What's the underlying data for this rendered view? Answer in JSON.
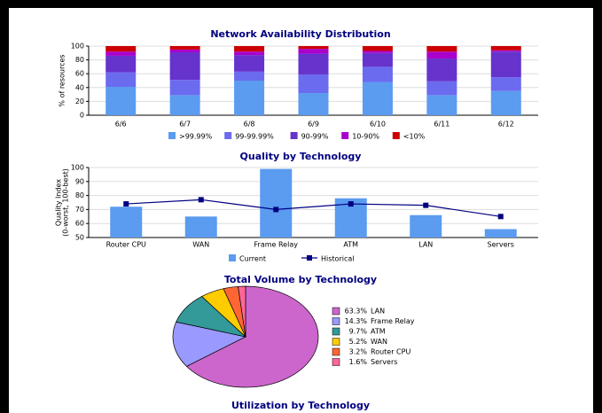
{
  "chart_data": [
    {
      "type": "stacked-bar",
      "title": "Network Availability Distribution",
      "ylabel": "% of resources",
      "categories": [
        "6/6",
        "6/7",
        "6/8",
        "6/9",
        "6/10",
        "6/11",
        "6/12"
      ],
      "series": [
        {
          "name": ">99.99%",
          "color": "#5b9bf0",
          "values": [
            41,
            29,
            50,
            32,
            48,
            29,
            35
          ]
        },
        {
          "name": "99-99.99%",
          "color": "#6b6bf0",
          "values": [
            21,
            22,
            13,
            27,
            22,
            20,
            20
          ]
        },
        {
          "name": "90-99%",
          "color": "#6633cc",
          "values": [
            24,
            40,
            24,
            30,
            20,
            33,
            37
          ]
        },
        {
          "name": "10-90%",
          "color": "#aa00cc",
          "values": [
            6,
            4,
            5,
            7,
            3,
            10,
            2
          ]
        },
        {
          "name": "<10%",
          "color": "#cc0000",
          "values": [
            8,
            5,
            8,
            4,
            7,
            8,
            6
          ]
        }
      ],
      "ylim": [
        0,
        100
      ],
      "yticks": [
        0,
        20,
        40,
        60,
        80,
        100
      ],
      "grid": true
    },
    {
      "type": "bar-line",
      "title": "Quality by Technology",
      "ylabel": [
        "Quality Index",
        "(0-worst, 100-best)"
      ],
      "categories": [
        "Router CPU",
        "WAN",
        "Frame Relay",
        "ATM",
        "LAN",
        "Servers"
      ],
      "series": [
        {
          "name": "Current",
          "color": "#5b9bf0",
          "values": [
            72,
            65,
            99,
            78,
            66,
            56
          ]
        },
        {
          "name": "Historical",
          "color": "#000080",
          "values": [
            74,
            77,
            70,
            74,
            73,
            65
          ]
        }
      ],
      "ylim": [
        50,
        100
      ],
      "yticks": [
        50,
        60,
        70,
        80,
        90,
        100
      ],
      "grid": true
    },
    {
      "type": "pie",
      "title": "Total Volume by Technology",
      "categories": [
        "LAN",
        "Frame Relay",
        "ATM",
        "WAN",
        "Router CPU",
        "Servers"
      ],
      "values": [
        63.3,
        14.3,
        9.7,
        5.2,
        3.2,
        1.6
      ],
      "value_labels": [
        "63.3%",
        "14.3%",
        "9.7%",
        "5.2%",
        "3.2%",
        "1.6%"
      ],
      "colors": [
        "#cc66cc",
        "#9999ff",
        "#339999",
        "#ffcc00",
        "#ff6633",
        "#ff6699"
      ]
    },
    {
      "title": "Utilization by Technology"
    }
  ]
}
